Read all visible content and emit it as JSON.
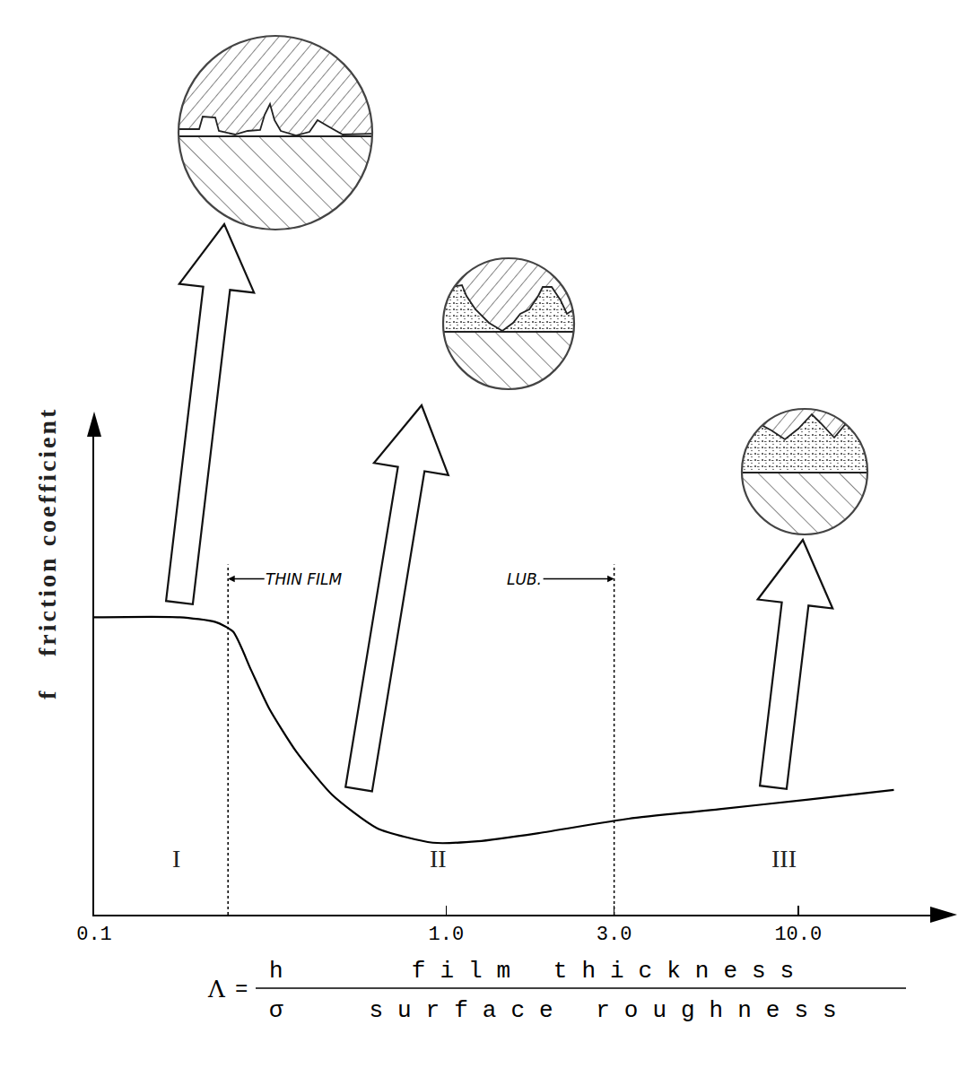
{
  "chart_data": {
    "type": "line",
    "y_symbol": "f",
    "y_label": "friction coefficient",
    "x_label": {
      "symbol": "Λ",
      "relation": "=",
      "numerator": "h",
      "denominator": "σ",
      "numerator_text": "film thickness",
      "denominator_text": "surface roughness"
    },
    "x": [
      0.1,
      0.175,
      0.221,
      0.248,
      0.279,
      0.314,
      0.375,
      0.474,
      0.637,
      0.916,
      1.23,
      1.83,
      3.3,
      5.97,
      10.7,
      18.7
    ],
    "values": [
      0.62,
      0.62,
      0.61,
      0.59,
      0.51,
      0.43,
      0.34,
      0.25,
      0.18,
      0.15,
      0.153,
      0.17,
      0.2,
      0.22,
      0.24,
      0.26
    ],
    "color": "#000000",
    "log": "x",
    "grid": false,
    "tick_labels": "x",
    "xlim": [
      0.1,
      24
    ],
    "ylim": [
      0,
      1
    ],
    "xticks": [
      0.1,
      {
        "value": 1,
        "label": "1.0"
      },
      {
        "value": 3,
        "label": "3.0"
      },
      {
        "value": 10,
        "label": "10.0"
      }
    ],
    "yticks": [],
    "boundaries": [
      {
        "x": 0.24,
        "y": 0.73
      },
      {
        "x": 3,
        "y": 0.73
      }
    ],
    "regions": [
      {
        "text": "I",
        "x": 0.165,
        "y": 0.084
      },
      {
        "text": "II",
        "x": 0.95,
        "y": 0.084
      },
      {
        "text": "III",
        "x": 10,
        "y": 0.084
      }
    ],
    "annotations": [
      {
        "text": "THIN FILM",
        "x": 0.24,
        "y": 0.7
      },
      {
        "text": "LUB.",
        "x": 3,
        "y": 0.7
      }
    ]
  }
}
